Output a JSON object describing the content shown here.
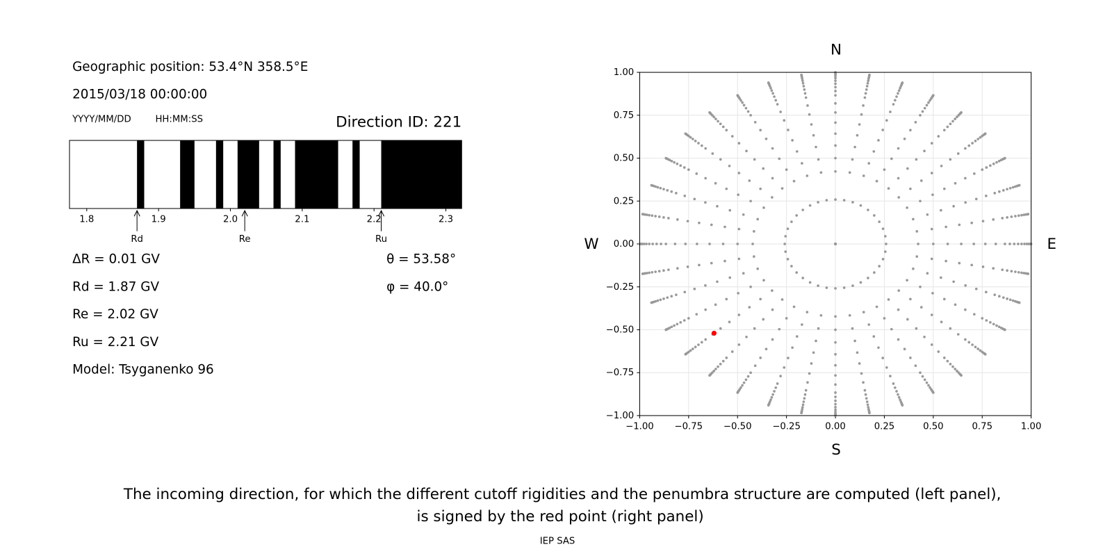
{
  "left_panel": {
    "position": "Geographic position: 53.4°N 358.5°E",
    "datetime": "2015/03/18 00:00:00",
    "date_format": "YYYY/MM/DD",
    "time_format": "HH:MM:SS",
    "direction_id": "Direction ID: 221",
    "penumbra": {
      "type": "penumbra",
      "xlim": [
        1.776,
        2.322
      ],
      "xticks": [
        1.8,
        1.9,
        {
          "value": 2,
          "label": "2.0"
        },
        2.1,
        2.2,
        2.3
      ],
      "forbidden_bands": [
        [
          1.87,
          1.88
        ],
        [
          1.93,
          1.95
        ],
        [
          1.98,
          1.99
        ],
        [
          2.01,
          2.04
        ],
        [
          2.06,
          2.07
        ],
        [
          2.09,
          2.15
        ],
        [
          2.17,
          2.18
        ],
        [
          2.21,
          2.322
        ]
      ],
      "band_color": "#000000",
      "cutoffs": [
        {
          "name": "Rd",
          "value": 1.87
        },
        {
          "name": "Re",
          "value": 2.02
        },
        {
          "name": "Ru",
          "value": 2.21
        }
      ]
    },
    "results": [
      "ΔR = 0.01 GV",
      "Rd = 1.87 GV",
      "Re = 2.02 GV",
      "Ru = 2.21 GV",
      "Model: Tsyganenko 96"
    ],
    "angles": [
      "θ = 53.58°",
      "φ = 40.0°"
    ]
  },
  "right_panel": {
    "type": "scatter",
    "xlim": [
      -1,
      1
    ],
    "ylim": [
      -1,
      1
    ],
    "xticks": [
      {
        "value": -1,
        "label": "−1.00"
      },
      {
        "value": -0.75,
        "label": "−0.75"
      },
      {
        "value": -0.5,
        "label": "−0.50"
      },
      {
        "value": -0.25,
        "label": "−0.25"
      },
      {
        "value": 0,
        "label": "0.00"
      },
      {
        "value": 0.25,
        "label": "0.25"
      },
      {
        "value": 0.5,
        "label": "0.50"
      },
      {
        "value": 0.75,
        "label": "0.75"
      },
      {
        "value": 1,
        "label": "1.00"
      }
    ],
    "yticks": [
      {
        "value": -1,
        "label": "−1.00"
      },
      {
        "value": -0.75,
        "label": "−0.75"
      },
      {
        "value": -0.5,
        "label": "−0.50"
      },
      {
        "value": -0.25,
        "label": "−0.25"
      },
      {
        "value": 0,
        "label": "0.00"
      },
      {
        "value": 0.25,
        "label": "0.25"
      },
      {
        "value": 0.5,
        "label": "0.50"
      },
      {
        "value": 0.75,
        "label": "0.75"
      },
      {
        "value": 1,
        "label": "1.00"
      }
    ],
    "grid": true,
    "directions": {
      "color": "#999999",
      "zenith": [
        0,
        15,
        25,
        30,
        35,
        40,
        45,
        50,
        55,
        60,
        63,
        66,
        69,
        72,
        75,
        78,
        81,
        84,
        87,
        90
      ],
      "azimuth": [
        0,
        10,
        20,
        30,
        40,
        50,
        60,
        70,
        80,
        90,
        100,
        110,
        120,
        130,
        140,
        150,
        160,
        170,
        180,
        190,
        200,
        210,
        220,
        230,
        240,
        250,
        260,
        270,
        280,
        290,
        300,
        310,
        320,
        330,
        340,
        350
      ]
    },
    "selected": {
      "x": -0.62,
      "y": -0.52,
      "color": "#ff0000"
    },
    "compass": {
      "north": "N",
      "south": "S",
      "west": "W",
      "east": "E"
    }
  },
  "caption": [
    "The incoming direction, for which the different cutoff rigidities and the penumbra structure are computed (left panel),",
    "is signed by the red point (right panel)"
  ],
  "footer": "IEP SAS"
}
